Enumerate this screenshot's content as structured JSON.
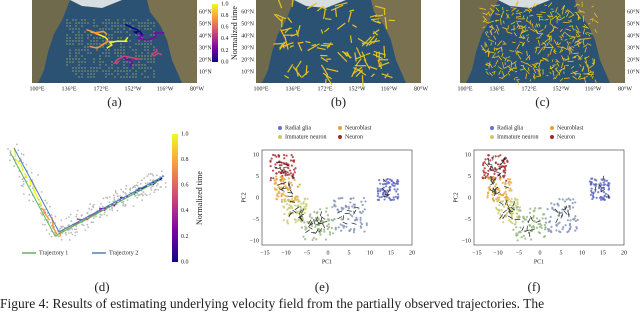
{
  "figure": {
    "panels": [
      {
        "label": "(a)",
        "lat_labels": [
          "60°N",
          "50°N",
          "40°N",
          "30°N",
          "20°N",
          "10°N"
        ],
        "lon_labels": [
          "100°E",
          "136°E",
          "172°E",
          "152°W",
          "116°W",
          "80°W"
        ],
        "colorbar": {
          "title": "Normalized time",
          "ticks": [
            "0.0",
            "0.2",
            "0.4",
            "0.6",
            "0.8",
            "1.0"
          ]
        }
      },
      {
        "label": "(b)",
        "lat_labels": [
          "60°N",
          "50°N",
          "40°N",
          "30°N",
          "20°N",
          "10°N"
        ],
        "lon_labels": [
          "100°E",
          "136°E",
          "172°E",
          "152°W",
          "116°W",
          "80°W"
        ]
      },
      {
        "label": "(c)",
        "lat_labels": [
          "60°N",
          "50°N",
          "40°N",
          "30°N",
          "20°N",
          "10°N"
        ],
        "lon_labels": [
          "100°E",
          "136°E",
          "172°E",
          "152°W",
          "116°W",
          "80°W"
        ]
      },
      {
        "label": "(d)",
        "colorbar": {
          "title": "Normalized time",
          "ticks": [
            "0.0",
            "0.2",
            "0.4",
            "0.6",
            "0.8",
            "1.0"
          ]
        },
        "legend": [
          "Trajectory 1",
          "Trajectory 2"
        ]
      },
      {
        "label": "(e)",
        "legend": [
          "Radial glia",
          "Neuroblast",
          "Immature neuron",
          "Neuron"
        ],
        "x_label": "PC1",
        "y_label": "PC2",
        "xticks": [
          "−15",
          "−10",
          "−5",
          "0",
          "5",
          "10",
          "15",
          "20"
        ],
        "yticks": [
          "10",
          "5",
          "0",
          "−5",
          "−10"
        ]
      },
      {
        "label": "(f)",
        "legend": [
          "Radial glia",
          "Neuroblast",
          "Immature neuron",
          "Neuron"
        ],
        "x_label": "PC1",
        "y_label": "PC2",
        "xticks": [
          "−15",
          "−10",
          "−5",
          "0",
          "5",
          "10",
          "15",
          "20"
        ],
        "yticks": [
          "10",
          "5",
          "0",
          "−5",
          "−10"
        ]
      }
    ],
    "caption": "Figure 4: Results of estimating underlying velocity field from the partially observed trajectories. The"
  }
}
